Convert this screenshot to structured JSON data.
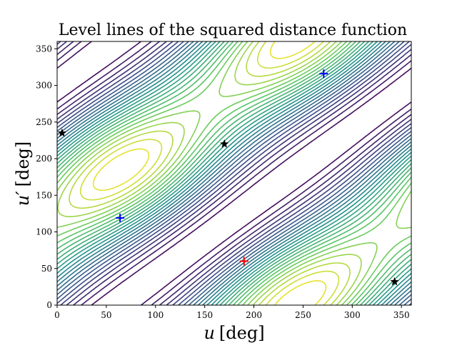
{
  "chart_data": {
    "type": "contour",
    "title": "Level lines of the squared distance function",
    "xlabel": {
      "var": "u",
      "unit": "[deg]"
    },
    "ylabel": {
      "var": "u′",
      "unit": "[deg]"
    },
    "xlim": [
      0,
      360
    ],
    "ylim": [
      0,
      360
    ],
    "xticks": [
      0,
      50,
      100,
      150,
      200,
      250,
      300,
      350
    ],
    "yticks": [
      0,
      50,
      100,
      150,
      200,
      250,
      300,
      350
    ],
    "colormap": [
      "#440154",
      "#3b528b",
      "#21918c",
      "#5ec962",
      "#fde725"
    ],
    "grid": false,
    "legend": "none",
    "markers": [
      {
        "kind": "star",
        "color": "#000000",
        "x": 5,
        "y": 235
      },
      {
        "kind": "star",
        "color": "#000000",
        "x": 170,
        "y": 220
      },
      {
        "kind": "star",
        "color": "#000000",
        "x": 343,
        "y": 32
      },
      {
        "kind": "plus",
        "color": "#0000ff",
        "x": 64,
        "y": 119
      },
      {
        "kind": "plus",
        "color": "#0000ff",
        "x": 271,
        "y": 316
      },
      {
        "kind": "plus",
        "color": "#ff0000",
        "x": 190,
        "y": 60
      }
    ]
  }
}
